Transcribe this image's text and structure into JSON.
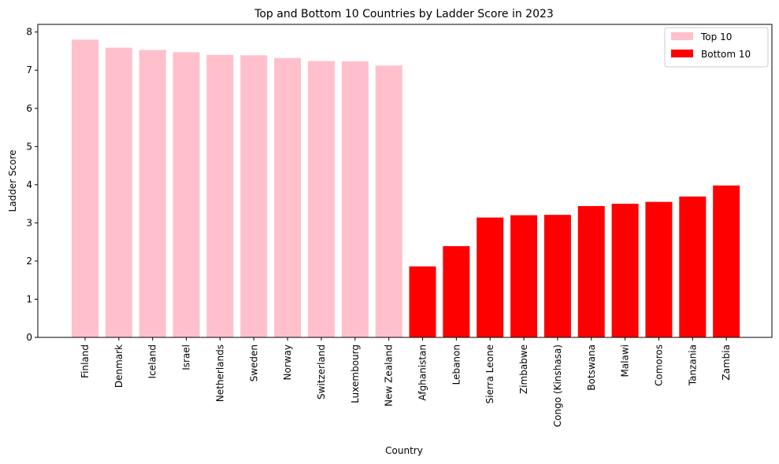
{
  "chart_data": {
    "type": "bar",
    "title": "Top and Bottom 10 Countries by Ladder Score in 2023",
    "xlabel": "Country",
    "ylabel": "Ladder Score",
    "ylim": [
      0,
      8.2
    ],
    "yticks": [
      0,
      1,
      2,
      3,
      4,
      5,
      6,
      7,
      8
    ],
    "grid": false,
    "legend_position": "top-right",
    "series": [
      {
        "name": "Top 10",
        "color": "#ffc0cb",
        "categories": [
          "Finland",
          "Denmark",
          "Iceland",
          "Israel",
          "Netherlands",
          "Sweden",
          "Norway",
          "Switzerland",
          "Luxembourg",
          "New Zealand"
        ],
        "values": [
          7.8,
          7.59,
          7.53,
          7.47,
          7.4,
          7.39,
          7.32,
          7.24,
          7.23,
          7.12
        ]
      },
      {
        "name": "Bottom 10",
        "color": "#ff0000",
        "categories": [
          "Afghanistan",
          "Lebanon",
          "Sierra Leone",
          "Zimbabwe",
          "Congo (Kinshasa)",
          "Botswana",
          "Malawi",
          "Comoros",
          "Tanzania",
          "Zambia"
        ],
        "values": [
          1.86,
          2.39,
          3.14,
          3.2,
          3.21,
          3.44,
          3.5,
          3.55,
          3.69,
          3.98
        ]
      }
    ]
  }
}
